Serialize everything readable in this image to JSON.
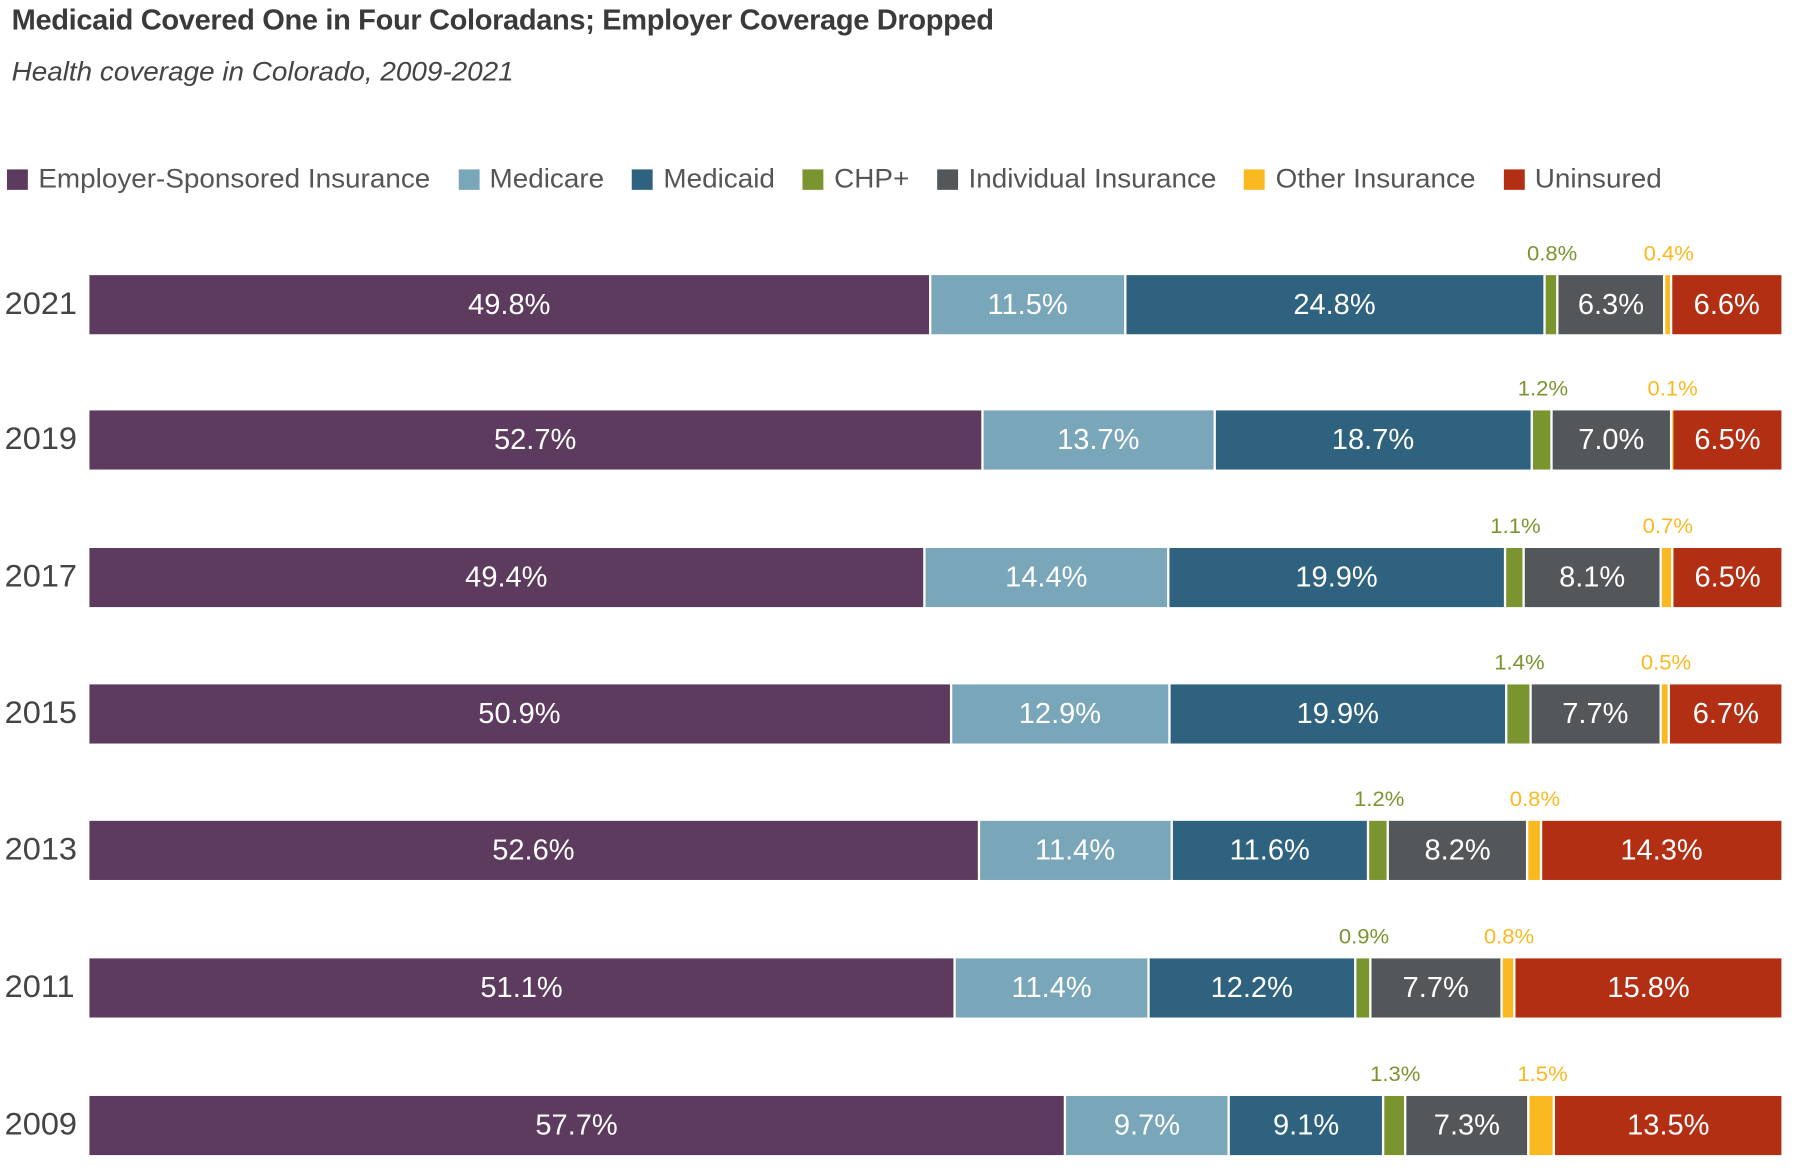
{
  "chart_data": {
    "type": "bar",
    "orientation": "horizontal",
    "stacked": true,
    "title": "Medicaid Covered One in Four Coloradans; Employer Coverage Dropped",
    "subtitle": "Health coverage in Colorado, 2009-2021",
    "legend_position": "top",
    "grid": false,
    "categories": [
      "2021",
      "2019",
      "2017",
      "2015",
      "2013",
      "2011",
      "2009"
    ],
    "series": [
      {
        "name": "Employer-Sponsored Insurance",
        "color": "#5c3b5e",
        "values": [
          49.8,
          52.7,
          49.4,
          50.9,
          52.6,
          51.1,
          57.7
        ]
      },
      {
        "name": "Medicare",
        "color": "#79a6b9",
        "values": [
          11.5,
          13.7,
          14.4,
          12.9,
          11.4,
          11.4,
          9.7
        ]
      },
      {
        "name": "Medicaid",
        "color": "#2e627e",
        "values": [
          24.8,
          18.7,
          19.9,
          19.9,
          11.6,
          12.2,
          9.1
        ]
      },
      {
        "name": "CHP+",
        "color": "#7a9530",
        "values": [
          0.8,
          1.2,
          1.1,
          1.4,
          1.2,
          0.9,
          1.3
        ]
      },
      {
        "name": "Individual Insurance",
        "color": "#53575a",
        "values": [
          6.3,
          7.0,
          8.1,
          7.7,
          8.2,
          7.7,
          7.3
        ]
      },
      {
        "name": "Other Insurance",
        "color": "#fbb921",
        "values": [
          0.4,
          0.1,
          0.7,
          0.5,
          0.8,
          0.8,
          1.5
        ]
      },
      {
        "name": "Uninsured",
        "color": "#b32f14",
        "values": [
          6.6,
          6.5,
          6.5,
          6.7,
          14.3,
          15.8,
          13.5
        ]
      }
    ],
    "data_labels": [
      [
        "49.8%",
        "11.5%",
        "24.8%",
        "0.8%",
        "6.3%",
        "0.4%",
        "6.6%"
      ],
      [
        "52.7%",
        "13.7%",
        "18.7%",
        "1.2%",
        "7.0%",
        "0.1%",
        "6.5%"
      ],
      [
        "49.4%",
        "14.4%",
        "19.9%",
        "1.1%",
        "8.1%",
        "0.7%",
        "6.5%"
      ],
      [
        "50.9%",
        "12.9%",
        "19.9%",
        "1.4%",
        "7.7%",
        "0.5%",
        "6.7%"
      ],
      [
        "52.6%",
        "11.4%",
        "11.6%",
        "1.2%",
        "8.2%",
        "0.8%",
        "14.3%"
      ],
      [
        "51.1%",
        "11.4%",
        "12.2%",
        "0.9%",
        "7.7%",
        "0.8%",
        "15.8%"
      ],
      [
        "57.7%",
        "9.7%",
        "9.1%",
        "1.3%",
        "7.3%",
        "1.5%",
        "13.5%"
      ]
    ],
    "outside_label_series": [
      "CHP+",
      "Other Insurance"
    ]
  }
}
